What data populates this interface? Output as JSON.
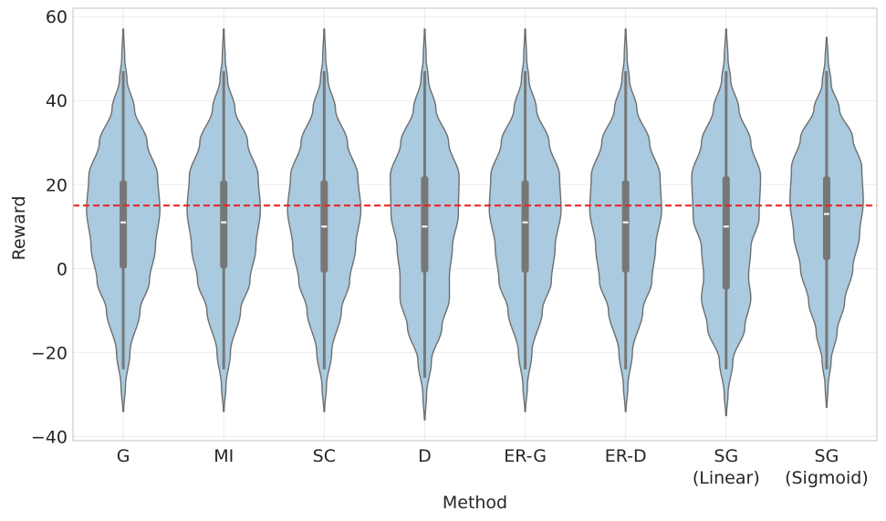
{
  "chart_data": {
    "type": "violin",
    "title": "",
    "xlabel": "Method",
    "ylabel": "Reward",
    "ylim": [
      -41,
      62
    ],
    "yticks": [
      -40,
      -20,
      0,
      20,
      40,
      60
    ],
    "ytick_labels": [
      "−40",
      "−20",
      "0",
      "20",
      "40",
      "60"
    ],
    "grid": true,
    "reference_line": {
      "y": 15,
      "color": "#ee1c1c",
      "style": "dashed"
    },
    "violin_color": "#a9cadf",
    "edge_color": "#6e6e6e",
    "categories": [
      {
        "label_lines": [
          "G"
        ],
        "min": -34,
        "max": 57,
        "q1": 0,
        "q3": 21,
        "median": 11,
        "whisker_low": -24,
        "whisker_high": 47,
        "profile": [
          [
            -34,
            0.01
          ],
          [
            -28,
            0.06
          ],
          [
            -20,
            0.18
          ],
          [
            -10,
            0.45
          ],
          [
            -3,
            0.7
          ],
          [
            5,
            0.86
          ],
          [
            14,
            0.98
          ],
          [
            22,
            0.92
          ],
          [
            30,
            0.64
          ],
          [
            38,
            0.3
          ],
          [
            45,
            0.1
          ],
          [
            50,
            0.04
          ],
          [
            57,
            0.01
          ]
        ]
      },
      {
        "label_lines": [
          "MI"
        ],
        "min": -34,
        "max": 57,
        "q1": 0,
        "q3": 21,
        "median": 11,
        "whisker_low": -24,
        "whisker_high": 47,
        "profile": [
          [
            -34,
            0.01
          ],
          [
            -28,
            0.06
          ],
          [
            -20,
            0.18
          ],
          [
            -10,
            0.45
          ],
          [
            -3,
            0.7
          ],
          [
            5,
            0.86
          ],
          [
            14,
            0.98
          ],
          [
            22,
            0.92
          ],
          [
            30,
            0.64
          ],
          [
            38,
            0.3
          ],
          [
            45,
            0.1
          ],
          [
            50,
            0.04
          ],
          [
            57,
            0.01
          ]
        ]
      },
      {
        "label_lines": [
          "SC"
        ],
        "min": -34,
        "max": 57,
        "q1": -1,
        "q3": 21,
        "median": 10,
        "whisker_low": -24,
        "whisker_high": 47,
        "profile": [
          [
            -34,
            0.01
          ],
          [
            -28,
            0.06
          ],
          [
            -20,
            0.2
          ],
          [
            -10,
            0.46
          ],
          [
            -3,
            0.68
          ],
          [
            5,
            0.84
          ],
          [
            14,
            0.98
          ],
          [
            22,
            0.9
          ],
          [
            30,
            0.62
          ],
          [
            38,
            0.3
          ],
          [
            45,
            0.1
          ],
          [
            50,
            0.04
          ],
          [
            57,
            0.01
          ]
        ]
      },
      {
        "label_lines": [
          "D"
        ],
        "min": -36,
        "max": 57,
        "q1": -1,
        "q3": 22,
        "median": 10,
        "whisker_low": -26,
        "whisker_high": 47,
        "profile": [
          [
            -36,
            0.01
          ],
          [
            -30,
            0.05
          ],
          [
            -22,
            0.18
          ],
          [
            -14,
            0.46
          ],
          [
            -7,
            0.66
          ],
          [
            -2,
            0.66
          ],
          [
            5,
            0.74
          ],
          [
            13,
            0.9
          ],
          [
            22,
            0.92
          ],
          [
            30,
            0.64
          ],
          [
            38,
            0.3
          ],
          [
            45,
            0.1
          ],
          [
            50,
            0.04
          ],
          [
            57,
            0.01
          ]
        ]
      },
      {
        "label_lines": [
          "ER-G"
        ],
        "min": -34,
        "max": 57,
        "q1": -1,
        "q3": 21,
        "median": 11,
        "whisker_low": -24,
        "whisker_high": 47,
        "profile": [
          [
            -34,
            0.01
          ],
          [
            -28,
            0.06
          ],
          [
            -20,
            0.18
          ],
          [
            -10,
            0.46
          ],
          [
            -3,
            0.7
          ],
          [
            5,
            0.8
          ],
          [
            14,
            0.96
          ],
          [
            22,
            0.92
          ],
          [
            30,
            0.64
          ],
          [
            38,
            0.3
          ],
          [
            45,
            0.1
          ],
          [
            50,
            0.04
          ],
          [
            57,
            0.01
          ]
        ]
      },
      {
        "label_lines": [
          "ER-D"
        ],
        "min": -34,
        "max": 57,
        "q1": -1,
        "q3": 21,
        "median": 11,
        "whisker_low": -24,
        "whisker_high": 47,
        "profile": [
          [
            -34,
            0.01
          ],
          [
            -28,
            0.06
          ],
          [
            -20,
            0.18
          ],
          [
            -10,
            0.46
          ],
          [
            -3,
            0.7
          ],
          [
            5,
            0.8
          ],
          [
            14,
            0.96
          ],
          [
            22,
            0.92
          ],
          [
            30,
            0.64
          ],
          [
            38,
            0.3
          ],
          [
            45,
            0.1
          ],
          [
            50,
            0.04
          ],
          [
            57,
            0.01
          ]
        ]
      },
      {
        "label_lines": [
          "SG",
          "(Linear)"
        ],
        "min": -35,
        "max": 57,
        "q1": -5,
        "q3": 22,
        "median": 10,
        "whisker_low": -24,
        "whisker_high": 47,
        "profile": [
          [
            -35,
            0.01
          ],
          [
            -30,
            0.05
          ],
          [
            -22,
            0.18
          ],
          [
            -14,
            0.5
          ],
          [
            -7,
            0.66
          ],
          [
            -2,
            0.6
          ],
          [
            5,
            0.66
          ],
          [
            12,
            0.88
          ],
          [
            22,
            0.92
          ],
          [
            30,
            0.66
          ],
          [
            38,
            0.34
          ],
          [
            45,
            0.12
          ],
          [
            50,
            0.05
          ],
          [
            57,
            0.01
          ]
        ]
      },
      {
        "label_lines": [
          "SG",
          "(Sigmoid)"
        ],
        "min": -33,
        "max": 55,
        "q1": 2,
        "q3": 22,
        "median": 13,
        "whisker_low": -24,
        "whisker_high": 47,
        "profile": [
          [
            -33,
            0.01
          ],
          [
            -28,
            0.04
          ],
          [
            -22,
            0.12
          ],
          [
            -15,
            0.28
          ],
          [
            -8,
            0.48
          ],
          [
            0,
            0.7
          ],
          [
            8,
            0.88
          ],
          [
            16,
            0.98
          ],
          [
            24,
            0.94
          ],
          [
            31,
            0.7
          ],
          [
            38,
            0.34
          ],
          [
            44,
            0.12
          ],
          [
            50,
            0.04
          ],
          [
            55,
            0.01
          ]
        ]
      }
    ]
  }
}
